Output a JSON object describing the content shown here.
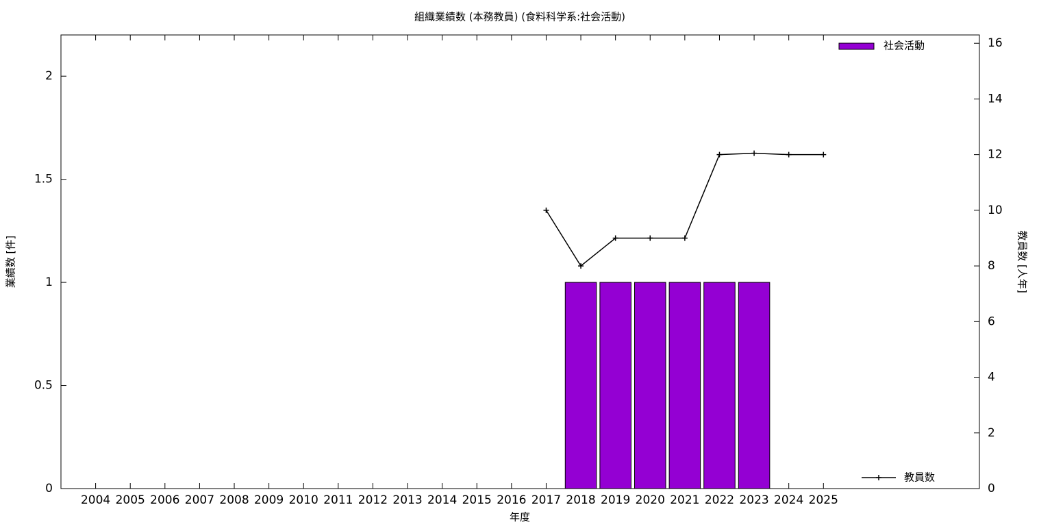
{
  "chart_data": {
    "type": "bar",
    "title": "組織業績数 (本務教員) (食料科学系:社会活動)",
    "xlabel": "年度",
    "ylabel": "業績数 [件]",
    "y2label": "教員数 [人年]",
    "x": [
      2004,
      2005,
      2006,
      2007,
      2008,
      2009,
      2010,
      2011,
      2012,
      2013,
      2014,
      2015,
      2016,
      2017,
      2018,
      2019,
      2020,
      2021,
      2022,
      2023,
      2024,
      2025
    ],
    "xlim": [
      2003,
      2029.5
    ],
    "xticks": [
      2004,
      2005,
      2006,
      2007,
      2008,
      2009,
      2010,
      2011,
      2012,
      2013,
      2014,
      2015,
      2016,
      2017,
      2018,
      2019,
      2020,
      2021,
      2022,
      2023,
      2024,
      2025
    ],
    "ylim": [
      0,
      2.2
    ],
    "yticks": [
      0,
      0.5,
      1,
      1.5,
      2
    ],
    "y2lim": [
      0,
      16.3
    ],
    "y2ticks": [
      0,
      2,
      4,
      6,
      8,
      10,
      12,
      14,
      16
    ],
    "series": [
      {
        "name": "社会活動",
        "type": "bar",
        "color": "#9400d3",
        "legend": "top-right",
        "values": [
          0,
          0,
          0,
          0,
          0,
          0,
          0,
          0,
          0,
          0,
          0,
          0,
          0,
          0,
          1,
          1,
          1,
          1,
          1,
          1,
          0,
          0
        ]
      },
      {
        "name": "教員数",
        "type": "line",
        "axis": "y2",
        "color": "#000000",
        "legend": "bottom-right",
        "values": [
          null,
          null,
          null,
          null,
          null,
          null,
          null,
          null,
          null,
          null,
          null,
          null,
          null,
          10,
          8,
          9,
          9,
          9,
          12,
          12.05,
          12,
          12
        ]
      }
    ]
  }
}
